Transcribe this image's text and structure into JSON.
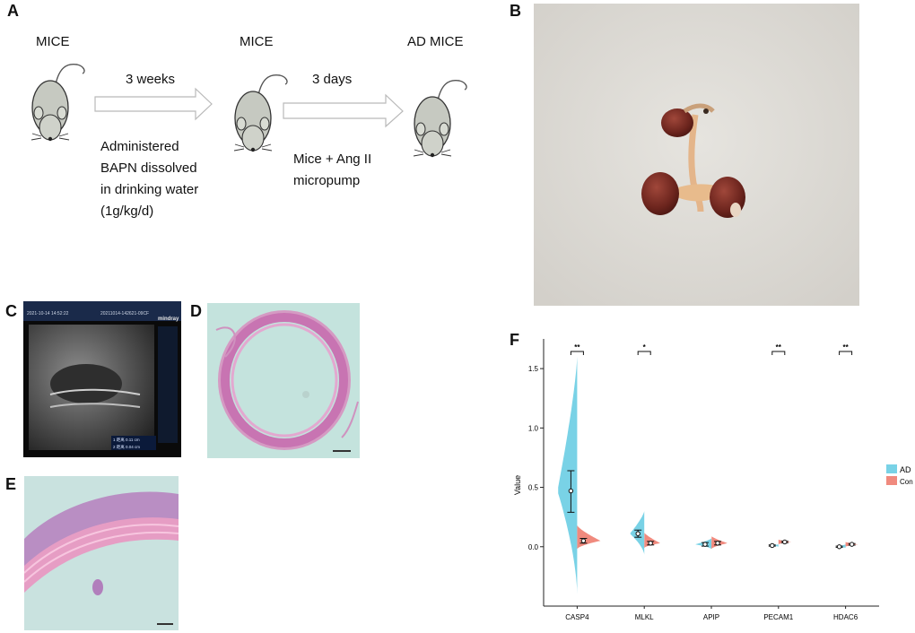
{
  "panels": {
    "A": "A",
    "B": "B",
    "C": "C",
    "D": "D",
    "E": "E",
    "F": "F"
  },
  "panel_a": {
    "stage1": "MICE",
    "stage2": "MICE",
    "stage3": "AD MICE",
    "arrow1_label": "3 weeks",
    "arrow2_label": "3 days",
    "step1_lines": [
      "Administered",
      "BAPN dissolved",
      "in drinking water",
      "(1g/kg/d)"
    ],
    "step2_lines": [
      "Mice + Ang II",
      "micropump"
    ]
  },
  "panel_c": {
    "header_left": "2021-10-14 14:52:22",
    "header_mid": "20211014-142621-09CF",
    "brand": "mindray",
    "meas1": "1 距离  0.11 cm",
    "meas2": "2 距离  0.04 cm"
  },
  "colors": {
    "ad": "#79d2e6",
    "con": "#f08a7e",
    "sig": "#111111"
  },
  "chart_data": {
    "type": "violin",
    "categories": [
      "CASP4",
      "MLKL",
      "APIP",
      "PECAM1",
      "HDAC6"
    ],
    "ylabel": "Value",
    "xlabel": "",
    "ylim": [
      -0.5,
      1.75
    ],
    "yticks": [
      "0.0",
      "0.5",
      "1.0",
      "1.5"
    ],
    "legend_position": "right",
    "series": [
      {
        "name": "AD",
        "means": [
          0.47,
          0.11,
          0.02,
          0.01,
          0.0
        ],
        "ci_low": [
          0.29,
          0.08,
          0.005,
          0.005,
          -0.005
        ],
        "ci_high": [
          0.64,
          0.14,
          0.035,
          0.015,
          0.005
        ],
        "min": [
          -0.4,
          -0.07,
          -0.02,
          0.0,
          -0.01
        ],
        "max": [
          1.6,
          0.3,
          0.07,
          0.02,
          0.02
        ]
      },
      {
        "name": "Con",
        "means": [
          0.05,
          0.03,
          0.03,
          0.04,
          0.02
        ],
        "ci_low": [
          0.03,
          0.015,
          0.015,
          0.033,
          0.013
        ],
        "ci_high": [
          0.07,
          0.045,
          0.045,
          0.047,
          0.027
        ],
        "min": [
          -0.02,
          -0.01,
          -0.02,
          0.02,
          0.0
        ],
        "max": [
          0.18,
          0.12,
          0.09,
          0.06,
          0.04
        ]
      }
    ],
    "significance": [
      "**",
      "*",
      "",
      "**",
      "**"
    ]
  }
}
